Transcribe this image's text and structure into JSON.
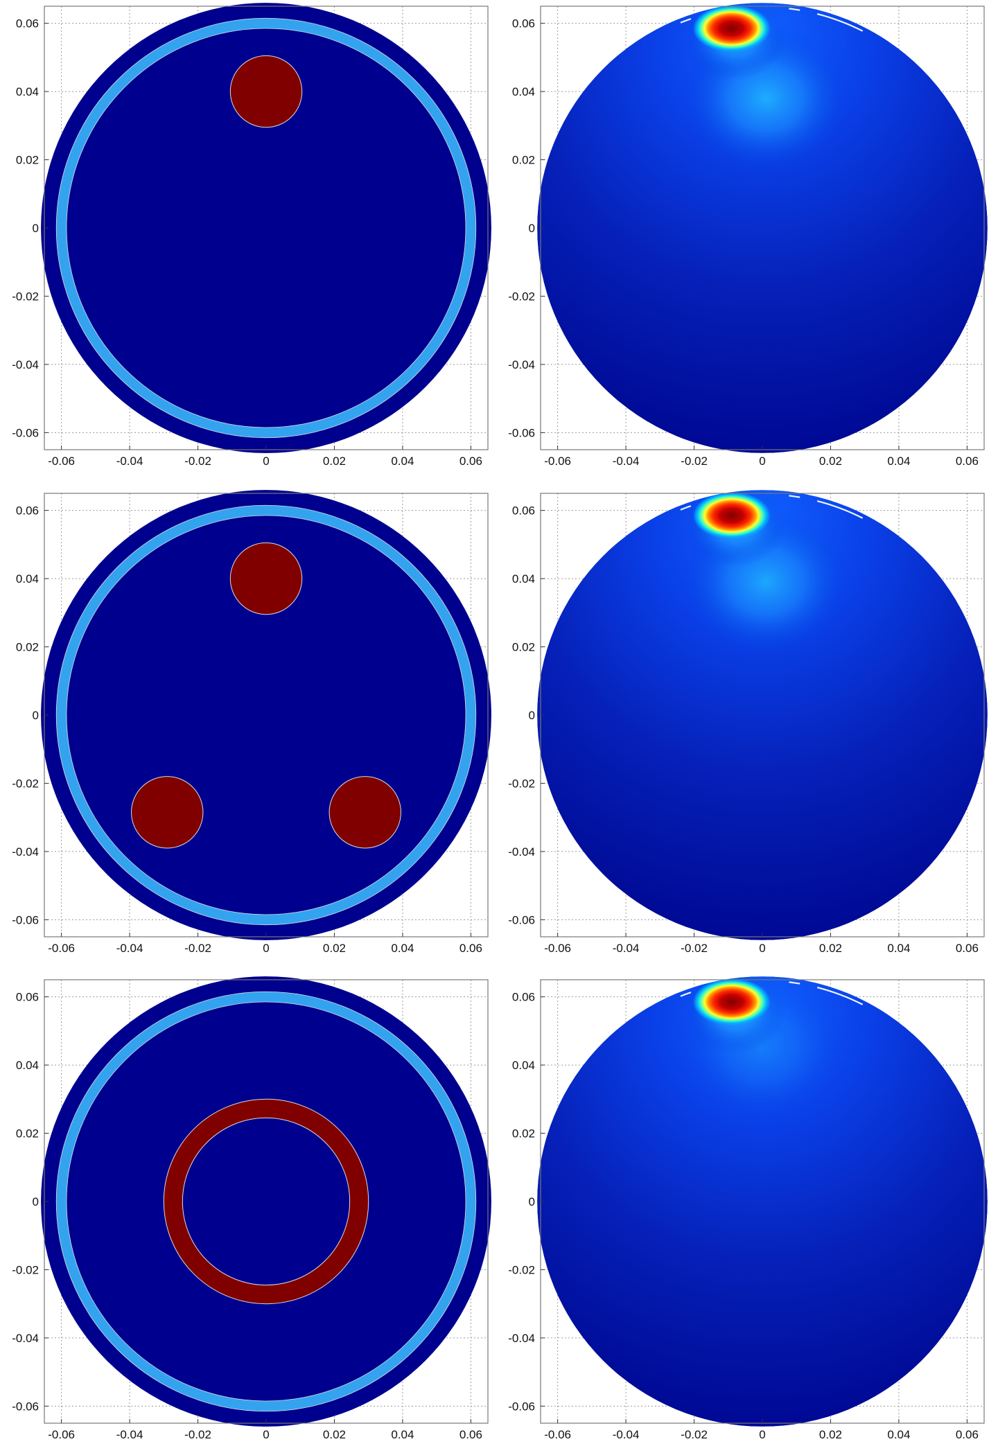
{
  "figure": {
    "layout": "3 rows x 2 columns",
    "colors": {
      "background_disk": "#00008f",
      "skin_ring": "#33a3f0",
      "inclusion": "#800000",
      "boundary_line": "#dcdcdc",
      "grid": "#9a9a9a",
      "axes": "#777777"
    }
  },
  "chart_data": [
    {
      "type": "heatmap",
      "title": "",
      "xlabel": "",
      "ylabel": "",
      "xlim": [
        -0.065,
        0.065
      ],
      "ylim": [
        -0.065,
        0.065
      ],
      "xticks": [
        "-0.06",
        "-0.04",
        "-0.02",
        "0",
        "0.02",
        "0.04",
        "0.06"
      ],
      "yticks": [
        "0.06",
        "0.04",
        "0.02",
        "0",
        "-0.02",
        "-0.04",
        "-0.06"
      ],
      "grid": true,
      "outer_radius": 0.066,
      "skin_ring": {
        "inner_radius": 0.0585,
        "outer_radius": 0.0615
      },
      "inclusions": [
        {
          "shape": "disk",
          "cx": 0,
          "cy": 0.04,
          "r": 0.0105
        }
      ]
    },
    {
      "type": "heatmap",
      "title": "",
      "xlabel": "",
      "ylabel": "",
      "xlim": [
        -0.065,
        0.065
      ],
      "ylim": [
        -0.065,
        0.065
      ],
      "xticks": [
        "-0.06",
        "-0.04",
        "-0.02",
        "0",
        "0.02",
        "0.04",
        "0.06"
      ],
      "yticks": [
        "0.06",
        "0.04",
        "0.02",
        "0",
        "-0.02",
        "-0.04",
        "-0.06"
      ],
      "grid": true,
      "outer_radius": 0.066,
      "hotspot": {
        "cx": -0.009,
        "cy": 0.0585,
        "level": 1.0
      },
      "secondary_glow": {
        "cx": 0.001,
        "cy": 0.038,
        "level": 0.45
      }
    },
    {
      "type": "heatmap",
      "title": "",
      "xlabel": "",
      "ylabel": "",
      "xlim": [
        -0.065,
        0.065
      ],
      "ylim": [
        -0.065,
        0.065
      ],
      "xticks": [
        "-0.06",
        "-0.04",
        "-0.02",
        "0",
        "0.02",
        "0.04",
        "0.06"
      ],
      "yticks": [
        "0.06",
        "0.04",
        "0.02",
        "0",
        "-0.02",
        "-0.04",
        "-0.06"
      ],
      "grid": true,
      "outer_radius": 0.066,
      "skin_ring": {
        "inner_radius": 0.0585,
        "outer_radius": 0.0615
      },
      "inclusions": [
        {
          "shape": "disk",
          "cx": 0,
          "cy": 0.04,
          "r": 0.0105
        },
        {
          "shape": "disk",
          "cx": -0.029,
          "cy": -0.0285,
          "r": 0.0105
        },
        {
          "shape": "disk",
          "cx": 0.029,
          "cy": -0.0285,
          "r": 0.0105
        }
      ]
    },
    {
      "type": "heatmap",
      "title": "",
      "xlabel": "",
      "ylabel": "",
      "xlim": [
        -0.065,
        0.065
      ],
      "ylim": [
        -0.065,
        0.065
      ],
      "xticks": [
        "-0.06",
        "-0.04",
        "-0.02",
        "0",
        "0.02",
        "0.04",
        "0.06"
      ],
      "yticks": [
        "0.06",
        "0.04",
        "0.02",
        "0",
        "-0.02",
        "-0.04",
        "-0.06"
      ],
      "grid": true,
      "outer_radius": 0.066,
      "hotspot": {
        "cx": -0.009,
        "cy": 0.0585,
        "level": 1.0
      },
      "secondary_glow": {
        "cx": 0.001,
        "cy": 0.039,
        "level": 0.42
      }
    },
    {
      "type": "heatmap",
      "title": "",
      "xlabel": "",
      "ylabel": "",
      "xlim": [
        -0.065,
        0.065
      ],
      "ylim": [
        -0.065,
        0.065
      ],
      "xticks": [
        "-0.06",
        "-0.04",
        "-0.02",
        "0",
        "0.02",
        "0.04",
        "0.06"
      ],
      "yticks": [
        "0.06",
        "0.04",
        "0.02",
        "0",
        "-0.02",
        "-0.04",
        "-0.06"
      ],
      "grid": true,
      "outer_radius": 0.066,
      "skin_ring": {
        "inner_radius": 0.0585,
        "outer_radius": 0.0615
      },
      "inclusions": [
        {
          "shape": "annulus",
          "cx": 0,
          "cy": 0,
          "inner_r": 0.0245,
          "outer_r": 0.03
        }
      ]
    },
    {
      "type": "heatmap",
      "title": "",
      "xlabel": "",
      "ylabel": "",
      "xlim": [
        -0.065,
        0.065
      ],
      "ylim": [
        -0.065,
        0.065
      ],
      "xticks": [
        "-0.06",
        "-0.04",
        "-0.02",
        "0",
        "0.02",
        "0.04",
        "0.06"
      ],
      "yticks": [
        "0.06",
        "0.04",
        "0.02",
        "0",
        "-0.02",
        "-0.04",
        "-0.06"
      ],
      "grid": true,
      "outer_radius": 0.066,
      "hotspot": {
        "cx": -0.009,
        "cy": 0.0585,
        "level": 1.0
      },
      "secondary_glow": {
        "cx": 0.0,
        "cy": 0.045,
        "level": 0.2
      }
    }
  ]
}
